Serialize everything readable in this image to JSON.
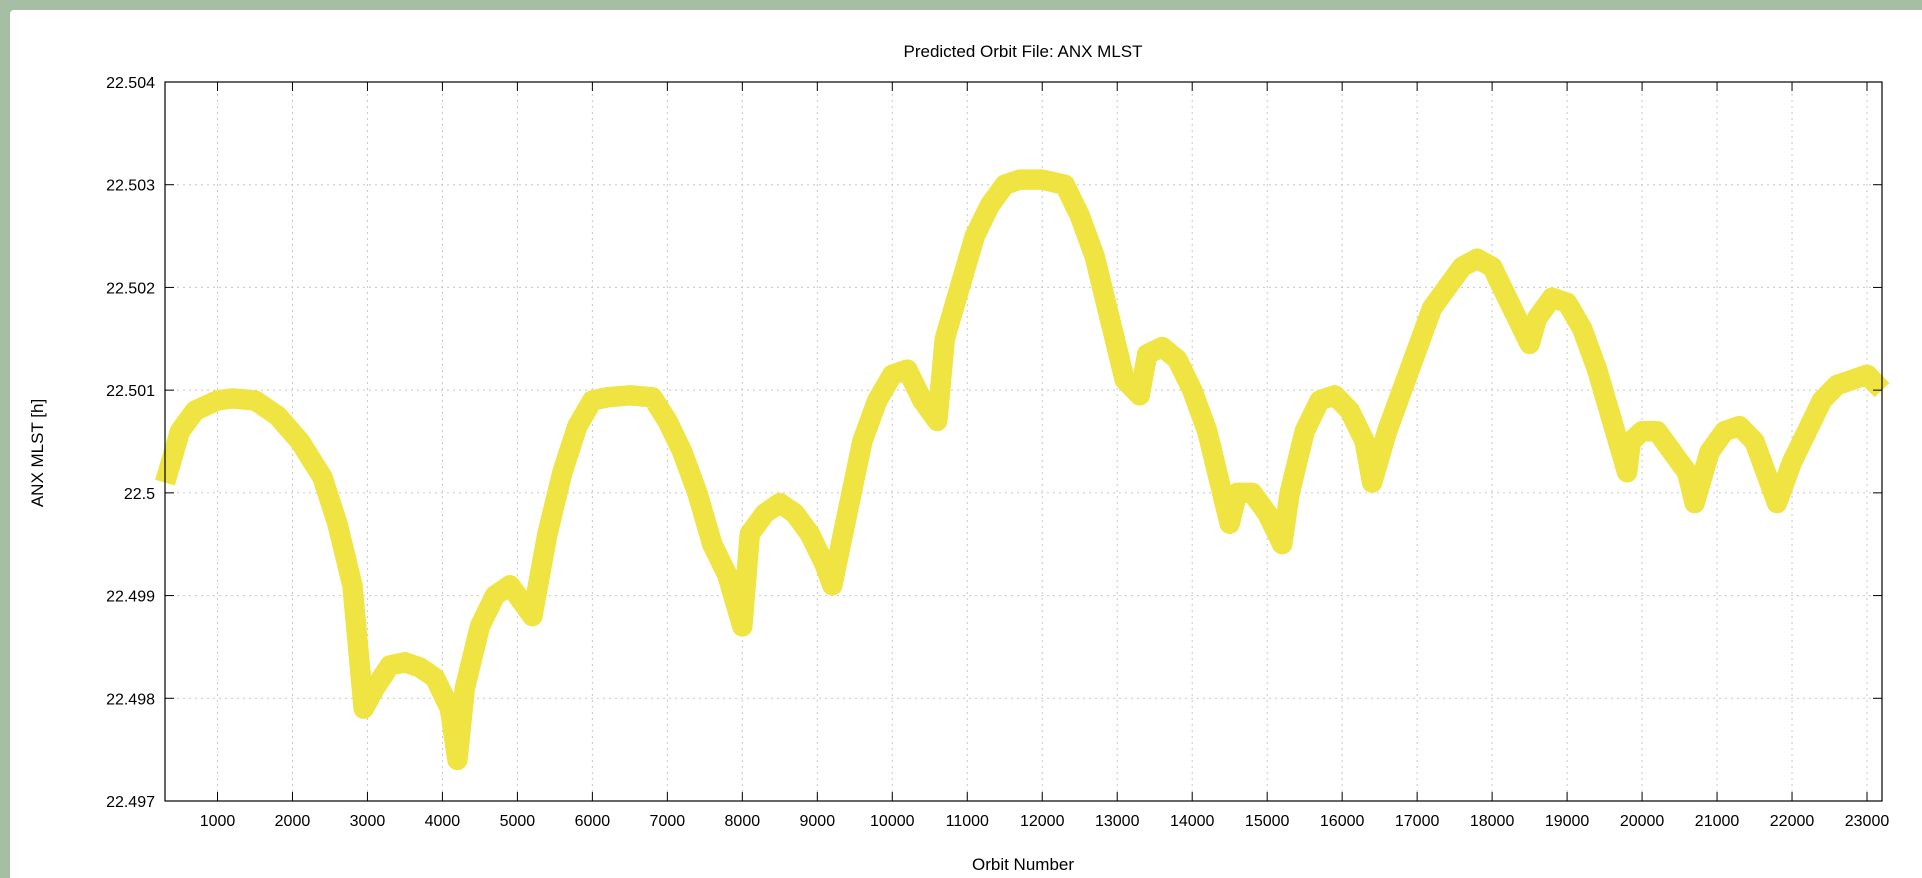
{
  "colors": {
    "frame": "#a6bfa4",
    "background": "#ffffff",
    "series": "#f0e442",
    "grid": "#c8c8c8"
  },
  "chart_data": {
    "type": "line",
    "title": "Predicted Orbit File: ANX MLST",
    "xlabel": "Orbit Number",
    "ylabel": "ANX MLST [h]",
    "xlim": [
      300,
      23200
    ],
    "ylim": [
      22.497,
      22.504
    ],
    "xticks": [
      1000,
      2000,
      3000,
      4000,
      5000,
      6000,
      7000,
      8000,
      9000,
      10000,
      11000,
      12000,
      13000,
      14000,
      15000,
      16000,
      17000,
      18000,
      19000,
      20000,
      21000,
      22000,
      23000
    ],
    "yticks": [
      "22.497",
      "22.498",
      "22.499",
      "22.5",
      "22.501",
      "22.502",
      "22.503",
      "22.504"
    ],
    "grid": true,
    "legend": "none",
    "series": [
      {
        "band_width": 0.0002,
        "x": [
          300,
          500,
          700,
          1000,
          1200,
          1500,
          1800,
          2100,
          2400,
          2600,
          2800,
          2950,
          3100,
          3300,
          3500,
          3700,
          3900,
          4100,
          4200,
          4300,
          4500,
          4700,
          4900,
          5100,
          5200,
          5400,
          5600,
          5800,
          6000,
          6200,
          6500,
          6800,
          7000,
          7200,
          7400,
          7600,
          7800,
          8000,
          8100,
          8300,
          8500,
          8700,
          8900,
          9100,
          9200,
          9400,
          9600,
          9800,
          10000,
          10200,
          10400,
          10600,
          10700,
          10900,
          11100,
          11300,
          11500,
          11700,
          12000,
          12300,
          12500,
          12700,
          12900,
          13100,
          13300,
          13400,
          13600,
          13800,
          14000,
          14200,
          14400,
          14500,
          14600,
          14800,
          15000,
          15200,
          15300,
          15500,
          15700,
          15900,
          16100,
          16300,
          16400,
          16600,
          16800,
          17000,
          17200,
          17400,
          17600,
          17800,
          18000,
          18200,
          18400,
          18500,
          18600,
          18800,
          19000,
          19200,
          19400,
          19600,
          19800,
          19850,
          20000,
          20200,
          20400,
          20600,
          20700,
          20900,
          21100,
          21300,
          21500,
          21700,
          21800,
          22000,
          22200,
          22400,
          22600,
          22800,
          23000,
          23200
        ],
        "values": [
          22.5001,
          22.5006,
          22.5008,
          22.5009,
          22.50092,
          22.5009,
          22.50075,
          22.5005,
          22.50015,
          22.4997,
          22.4991,
          22.4979,
          22.4981,
          22.49832,
          22.49835,
          22.4983,
          22.4982,
          22.4979,
          22.4974,
          22.4981,
          22.4987,
          22.499,
          22.4991,
          22.4989,
          22.4988,
          22.4996,
          22.5002,
          22.50065,
          22.5009,
          22.50093,
          22.50095,
          22.50093,
          22.5007,
          22.5004,
          22.5,
          22.4995,
          22.4992,
          22.4987,
          22.4996,
          22.4998,
          22.4999,
          22.4998,
          22.4996,
          22.4993,
          22.4991,
          22.4998,
          22.5005,
          22.5009,
          22.50115,
          22.5012,
          22.5009,
          22.5007,
          22.5015,
          22.502,
          22.5025,
          22.5028,
          22.503,
          22.50305,
          22.50305,
          22.503,
          22.5027,
          22.5023,
          22.5017,
          22.5011,
          22.50095,
          22.50135,
          22.50142,
          22.5013,
          22.501,
          22.5006,
          22.5,
          22.4997,
          22.5,
          22.5,
          22.4998,
          22.4995,
          22.5,
          22.5006,
          22.5009,
          22.50095,
          22.5008,
          22.5005,
          22.5001,
          22.5006,
          22.501,
          22.5014,
          22.5018,
          22.502,
          22.5022,
          22.50228,
          22.5022,
          22.5019,
          22.5016,
          22.50145,
          22.5017,
          22.5019,
          22.50185,
          22.5016,
          22.5012,
          22.5007,
          22.5002,
          22.5005,
          22.5006,
          22.5006,
          22.5004,
          22.5002,
          22.4999,
          22.5004,
          22.5006,
          22.50065,
          22.5005,
          22.5001,
          22.4999,
          22.5003,
          22.5006,
          22.5009,
          22.50105,
          22.5011,
          22.50115,
          22.501
        ]
      }
    ]
  }
}
